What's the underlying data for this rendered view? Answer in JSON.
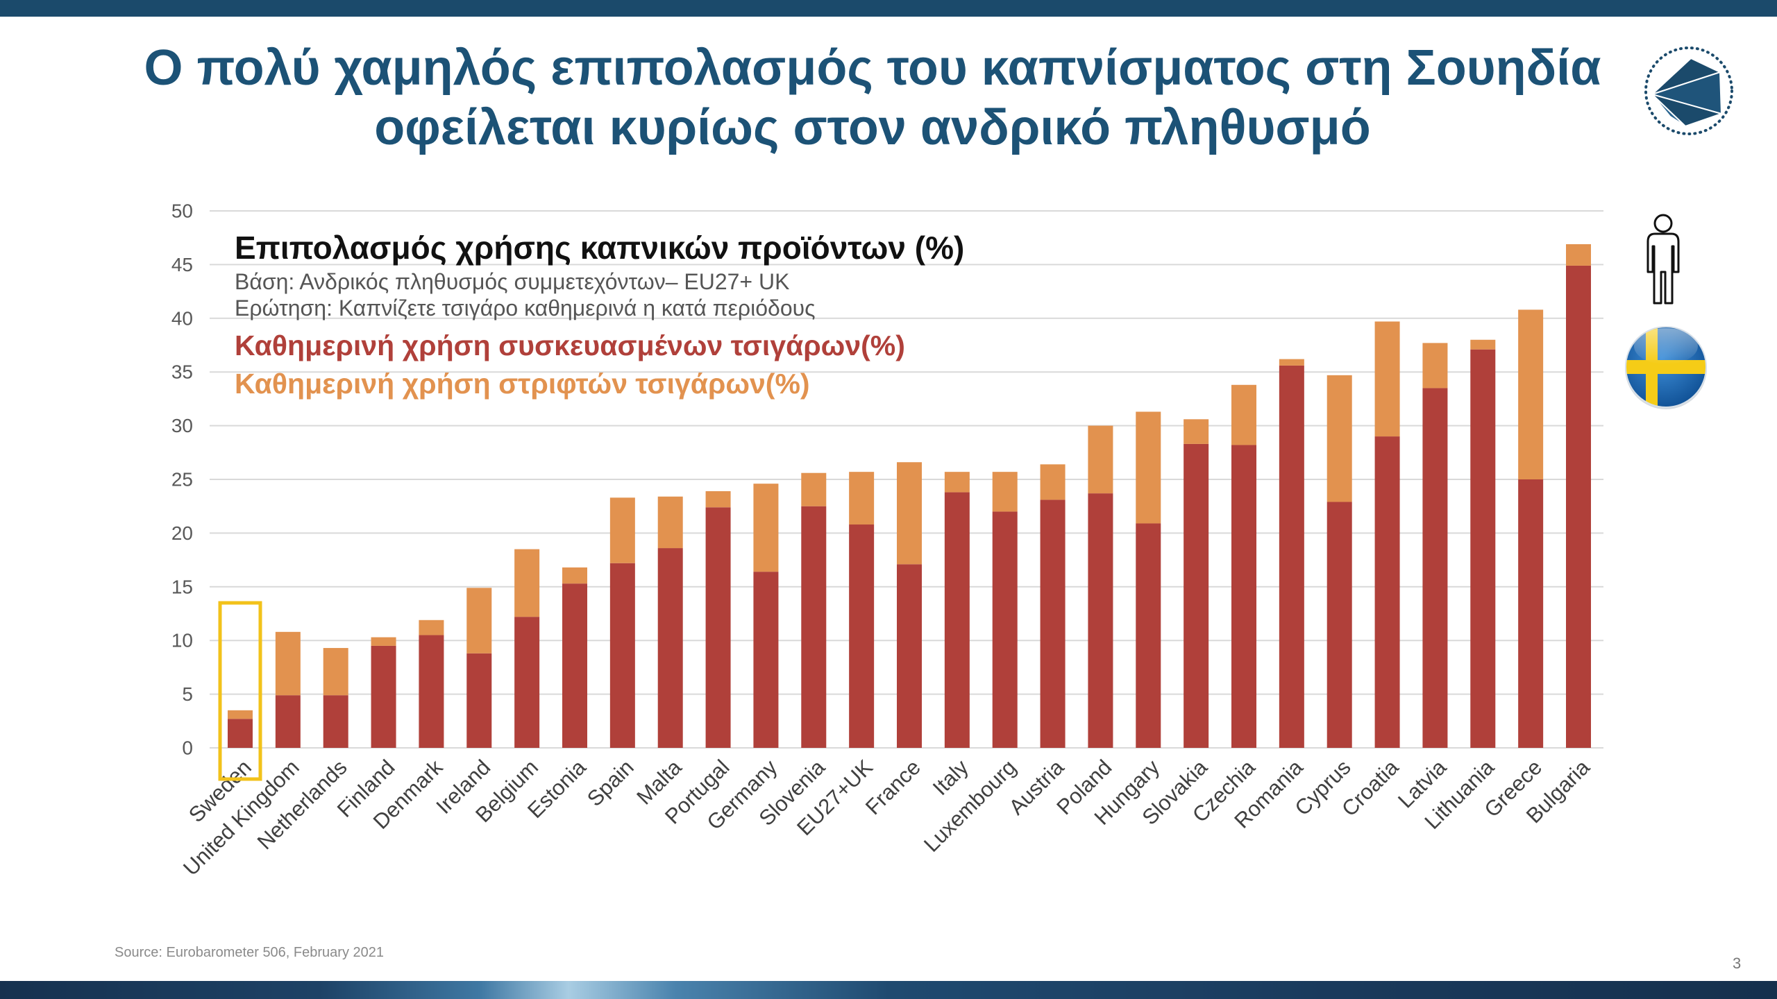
{
  "title": {
    "line1": "Ο πολύ χαμηλός επιπολασμός του καπνίσματος στη Σουηδία",
    "line2": "οφείλεται κυρίως στον ανδρικό πληθυσμό"
  },
  "chart_data": {
    "type": "bar",
    "stacked": true,
    "title": "Επιπολασμός χρήσης καπνικών προϊόντων (%)",
    "subtitle_base": "Βάση: Ανδρικός πληθυσμός συμμετεχόντων– EU27+ UK",
    "subtitle_question": "Ερώτηση: Καπνίζετε τσιγάρο καθημερινά η κατά περιόδους",
    "categories": [
      "Sweden",
      "United Kingdom",
      "Netherlands",
      "Finland",
      "Denmark",
      "Ireland",
      "Belgium",
      "Estonia",
      "Spain",
      "Malta",
      "Portugal",
      "Germany",
      "Slovenia",
      "EU27+UK",
      "France",
      "Italy",
      "Luxembourg",
      "Austria",
      "Poland",
      "Hungary",
      "Slovakia",
      "Czechia",
      "Romania",
      "Cyprus",
      "Croatia",
      "Latvia",
      "Lithuania",
      "Greece",
      "Bulgaria"
    ],
    "series": [
      {
        "name": "Καθημερινή χρήση συσκευασμένων τσιγάρων(%)",
        "color": "#b0403a",
        "values": [
          2.7,
          4.9,
          4.9,
          9.5,
          10.5,
          8.8,
          12.2,
          15.3,
          17.2,
          18.6,
          22.4,
          16.4,
          22.5,
          20.8,
          17.1,
          23.8,
          22.0,
          23.1,
          23.7,
          20.9,
          28.3,
          28.2,
          35.6,
          22.9,
          29.0,
          33.5,
          37.1,
          25.0,
          44.9
        ]
      },
      {
        "name": "Καθημερινή χρήση στριφτών τσιγάρων(%)",
        "color": "#e2924f",
        "values": [
          0.8,
          5.9,
          4.4,
          0.8,
          1.4,
          6.1,
          6.3,
          1.5,
          6.1,
          4.8,
          1.5,
          8.2,
          3.1,
          4.9,
          9.5,
          1.9,
          3.7,
          3.3,
          6.3,
          10.4,
          2.3,
          5.6,
          0.6,
          11.8,
          10.7,
          4.2,
          0.9,
          15.8,
          2.0
        ]
      }
    ],
    "ylim": [
      0,
      50
    ],
    "yticks": [
      0,
      5,
      10,
      15,
      20,
      25,
      30,
      35,
      40,
      45,
      50
    ],
    "grid": true,
    "legend_position": "top-left",
    "highlight_category": "Sweden",
    "highlight_color": "#f2c21a"
  },
  "source": "Source: Eurobarometer 506, February 2021",
  "page_number": "3",
  "icons": {
    "logo": "logo-emblem",
    "person": "male-person-icon",
    "flag": "sweden-flag-icon"
  },
  "colors": {
    "title": "#1c5276",
    "top_bar": "#1b4a6b",
    "bottom_band": "#1a3a5c"
  }
}
